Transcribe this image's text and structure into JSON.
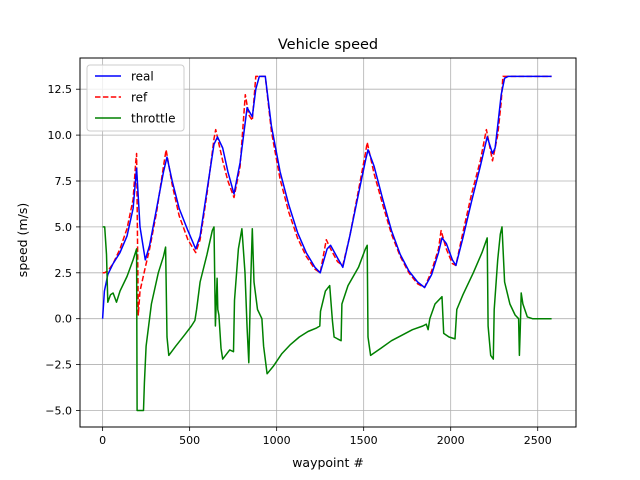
{
  "chart_data": {
    "type": "line",
    "title": "Vehicle speed",
    "xlabel": "waypoint #",
    "ylabel": "speed (m/s)",
    "xlim": [
      -130,
      2720
    ],
    "ylim": [
      -5.9,
      14.2
    ],
    "xticks": [
      0,
      500,
      1000,
      1500,
      2000,
      2500
    ],
    "yticks": [
      -5.0,
      -2.5,
      0.0,
      2.5,
      5.0,
      7.5,
      10.0,
      12.5
    ],
    "xtick_labels": [
      "0",
      "500",
      "1000",
      "1500",
      "2000",
      "2500"
    ],
    "ytick_labels": [
      "−5.0",
      "−2.5",
      "0.0",
      "2.5",
      "5.0",
      "7.5",
      "10.0",
      "12.5"
    ],
    "grid": true,
    "legend_position": "top-left",
    "series": [
      {
        "name": "real",
        "color": "#0000ff",
        "style": "solid",
        "points": [
          [
            0,
            0
          ],
          [
            10,
            1.5
          ],
          [
            30,
            2.4
          ],
          [
            60,
            3.0
          ],
          [
            100,
            3.6
          ],
          [
            140,
            4.5
          ],
          [
            175,
            6.0
          ],
          [
            195,
            8.2
          ],
          [
            215,
            5.0
          ],
          [
            245,
            3.2
          ],
          [
            270,
            4.0
          ],
          [
            310,
            6.0
          ],
          [
            350,
            8.0
          ],
          [
            370,
            8.8
          ],
          [
            400,
            7.5
          ],
          [
            440,
            6.0
          ],
          [
            490,
            4.8
          ],
          [
            535,
            3.8
          ],
          [
            560,
            4.5
          ],
          [
            600,
            7.0
          ],
          [
            640,
            9.5
          ],
          [
            660,
            9.9
          ],
          [
            690,
            9.3
          ],
          [
            720,
            8.0
          ],
          [
            755,
            6.8
          ],
          [
            790,
            8.5
          ],
          [
            830,
            11.5
          ],
          [
            860,
            11.0
          ],
          [
            880,
            12.5
          ],
          [
            900,
            13.2
          ],
          [
            935,
            13.2
          ],
          [
            970,
            10.5
          ],
          [
            1020,
            8.0
          ],
          [
            1070,
            6.2
          ],
          [
            1120,
            4.7
          ],
          [
            1170,
            3.6
          ],
          [
            1220,
            2.8
          ],
          [
            1250,
            2.5
          ],
          [
            1290,
            3.8
          ],
          [
            1310,
            4.0
          ],
          [
            1350,
            3.3
          ],
          [
            1380,
            2.8
          ],
          [
            1420,
            4.5
          ],
          [
            1470,
            6.8
          ],
          [
            1510,
            8.6
          ],
          [
            1525,
            9.2
          ],
          [
            1560,
            8.3
          ],
          [
            1610,
            6.5
          ],
          [
            1660,
            4.8
          ],
          [
            1710,
            3.5
          ],
          [
            1760,
            2.6
          ],
          [
            1810,
            2.0
          ],
          [
            1850,
            1.7
          ],
          [
            1890,
            2.4
          ],
          [
            1930,
            3.6
          ],
          [
            1950,
            4.4
          ],
          [
            1975,
            4.1
          ],
          [
            2010,
            3.2
          ],
          [
            2030,
            2.9
          ],
          [
            2070,
            4.4
          ],
          [
            2120,
            6.4
          ],
          [
            2170,
            8.3
          ],
          [
            2210,
            9.9
          ],
          [
            2240,
            9.0
          ],
          [
            2255,
            9.3
          ],
          [
            2270,
            10.5
          ],
          [
            2290,
            12.2
          ],
          [
            2310,
            13.1
          ],
          [
            2330,
            13.2
          ],
          [
            2580,
            13.2
          ]
        ]
      },
      {
        "name": "ref",
        "color": "#ff0000",
        "style": "dashed",
        "points": [
          [
            0,
            2.5
          ],
          [
            10,
            2.5
          ],
          [
            30,
            2.6
          ],
          [
            60,
            3.0
          ],
          [
            100,
            3.8
          ],
          [
            140,
            4.9
          ],
          [
            175,
            6.5
          ],
          [
            190,
            8.5
          ],
          [
            195,
            9.0
          ],
          [
            205,
            0.2
          ],
          [
            215,
            1.5
          ],
          [
            245,
            2.8
          ],
          [
            270,
            3.8
          ],
          [
            310,
            5.8
          ],
          [
            350,
            8.3
          ],
          [
            365,
            9.2
          ],
          [
            400,
            7.3
          ],
          [
            440,
            5.6
          ],
          [
            490,
            4.3
          ],
          [
            535,
            3.6
          ],
          [
            560,
            4.3
          ],
          [
            600,
            6.8
          ],
          [
            640,
            9.8
          ],
          [
            650,
            10.3
          ],
          [
            690,
            8.6
          ],
          [
            720,
            7.5
          ],
          [
            755,
            6.6
          ],
          [
            790,
            8.3
          ],
          [
            820,
            12.2
          ],
          [
            840,
            11.1
          ],
          [
            860,
            10.8
          ],
          [
            880,
            13.2
          ],
          [
            935,
            13.2
          ],
          [
            970,
            10.2
          ],
          [
            1020,
            7.6
          ],
          [
            1070,
            5.8
          ],
          [
            1120,
            4.4
          ],
          [
            1170,
            3.4
          ],
          [
            1220,
            2.7
          ],
          [
            1250,
            2.5
          ],
          [
            1285,
            4.3
          ],
          [
            1310,
            3.8
          ],
          [
            1350,
            3.1
          ],
          [
            1380,
            2.9
          ],
          [
            1420,
            4.5
          ],
          [
            1470,
            7.0
          ],
          [
            1510,
            9.0
          ],
          [
            1520,
            9.6
          ],
          [
            1560,
            7.9
          ],
          [
            1610,
            6.2
          ],
          [
            1660,
            4.6
          ],
          [
            1710,
            3.4
          ],
          [
            1760,
            2.5
          ],
          [
            1810,
            1.9
          ],
          [
            1850,
            1.7
          ],
          [
            1890,
            2.6
          ],
          [
            1930,
            3.8
          ],
          [
            1945,
            4.8
          ],
          [
            1975,
            3.8
          ],
          [
            2010,
            3.0
          ],
          [
            2030,
            2.9
          ],
          [
            2070,
            4.7
          ],
          [
            2120,
            6.8
          ],
          [
            2170,
            8.6
          ],
          [
            2205,
            10.3
          ],
          [
            2240,
            8.6
          ],
          [
            2270,
            10.0
          ],
          [
            2290,
            11.8
          ],
          [
            2300,
            13.2
          ],
          [
            2580,
            13.2
          ]
        ]
      },
      {
        "name": "throttle",
        "color": "#008000",
        "style": "solid",
        "points": [
          [
            0,
            5.0
          ],
          [
            12,
            5.0
          ],
          [
            22,
            3.5
          ],
          [
            30,
            0.9
          ],
          [
            45,
            1.3
          ],
          [
            60,
            1.4
          ],
          [
            80,
            0.9
          ],
          [
            100,
            1.5
          ],
          [
            140,
            2.3
          ],
          [
            175,
            3.2
          ],
          [
            195,
            3.8
          ],
          [
            198,
            -5.0
          ],
          [
            235,
            -5.0
          ],
          [
            240,
            -3.5
          ],
          [
            250,
            -1.5
          ],
          [
            280,
            0.8
          ],
          [
            320,
            2.5
          ],
          [
            350,
            3.4
          ],
          [
            362,
            3.9
          ],
          [
            370,
            -1.0
          ],
          [
            380,
            -2.0
          ],
          [
            420,
            -1.5
          ],
          [
            470,
            -0.9
          ],
          [
            510,
            -0.4
          ],
          [
            530,
            -0.1
          ],
          [
            540,
            0.5
          ],
          [
            560,
            2.0
          ],
          [
            600,
            3.5
          ],
          [
            630,
            4.8
          ],
          [
            640,
            5.0
          ],
          [
            648,
            -0.4
          ],
          [
            658,
            2.2
          ],
          [
            662,
            0.5
          ],
          [
            668,
            0.2
          ],
          [
            680,
            -1.6
          ],
          [
            690,
            -2.2
          ],
          [
            730,
            -1.7
          ],
          [
            752,
            -1.8
          ],
          [
            758,
            1.0
          ],
          [
            780,
            3.8
          ],
          [
            800,
            4.9
          ],
          [
            818,
            2.5
          ],
          [
            830,
            -0.5
          ],
          [
            840,
            -2.4
          ],
          [
            850,
            1.8
          ],
          [
            860,
            4.9
          ],
          [
            870,
            2.0
          ],
          [
            890,
            0.5
          ],
          [
            915,
            0.0
          ],
          [
            925,
            -1.5
          ],
          [
            945,
            -3.0
          ],
          [
            980,
            -2.6
          ],
          [
            1030,
            -1.9
          ],
          [
            1080,
            -1.4
          ],
          [
            1130,
            -1.0
          ],
          [
            1180,
            -0.7
          ],
          [
            1230,
            -0.5
          ],
          [
            1248,
            -0.4
          ],
          [
            1252,
            0.4
          ],
          [
            1280,
            1.5
          ],
          [
            1305,
            1.8
          ],
          [
            1320,
            -0.1
          ],
          [
            1330,
            -1.0
          ],
          [
            1350,
            -1.1
          ],
          [
            1370,
            -1.2
          ],
          [
            1375,
            0.8
          ],
          [
            1410,
            1.8
          ],
          [
            1470,
            2.8
          ],
          [
            1510,
            3.8
          ],
          [
            1520,
            4.0
          ],
          [
            1525,
            -1.0
          ],
          [
            1540,
            -2.0
          ],
          [
            1600,
            -1.6
          ],
          [
            1660,
            -1.2
          ],
          [
            1720,
            -0.9
          ],
          [
            1780,
            -0.6
          ],
          [
            1840,
            -0.4
          ],
          [
            1860,
            -0.3
          ],
          [
            1870,
            -0.6
          ],
          [
            1880,
            0.0
          ],
          [
            1910,
            0.8
          ],
          [
            1950,
            1.2
          ],
          [
            1960,
            -0.8
          ],
          [
            1990,
            -1.0
          ],
          [
            2025,
            -1.1
          ],
          [
            2035,
            0.5
          ],
          [
            2070,
            1.3
          ],
          [
            2130,
            2.5
          ],
          [
            2180,
            3.6
          ],
          [
            2210,
            4.4
          ],
          [
            2215,
            -0.4
          ],
          [
            2230,
            -2.0
          ],
          [
            2245,
            -2.2
          ],
          [
            2250,
            0.5
          ],
          [
            2270,
            3.2
          ],
          [
            2285,
            4.6
          ],
          [
            2295,
            5.0
          ],
          [
            2310,
            2.0
          ],
          [
            2340,
            0.8
          ],
          [
            2370,
            0.2
          ],
          [
            2390,
            0.0
          ],
          [
            2395,
            -2.0
          ],
          [
            2400,
            -0.5
          ],
          [
            2405,
            1.4
          ],
          [
            2415,
            0.8
          ],
          [
            2440,
            0.1
          ],
          [
            2470,
            0.0
          ],
          [
            2580,
            0.0
          ]
        ]
      }
    ]
  }
}
